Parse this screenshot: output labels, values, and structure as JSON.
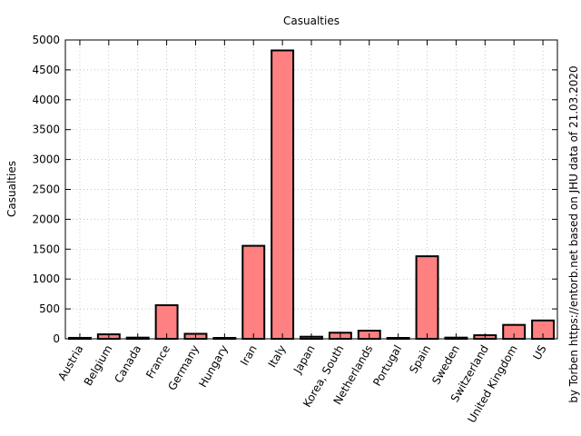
{
  "chart_data": {
    "type": "bar",
    "title": "Casualties",
    "ylabel": "Casualties",
    "xlabel": "",
    "ylim": [
      0,
      5000
    ],
    "yticks": [
      0,
      500,
      1000,
      1500,
      2000,
      2500,
      3000,
      3500,
      4000,
      4500,
      5000
    ],
    "grid": true,
    "bar_color": "#ff8080",
    "categories": [
      "Austria",
      "Belgium",
      "Canada",
      "France",
      "Germany",
      "Hungary",
      "Iran",
      "Italy",
      "Japan",
      "Korea, South",
      "Netherlands",
      "Portugal",
      "Spain",
      "Sweden",
      "Switzerland",
      "United Kingdom",
      "US"
    ],
    "values": [
      16,
      75,
      20,
      562,
      84,
      6,
      1556,
      4825,
      35,
      102,
      136,
      12,
      1381,
      20,
      60,
      233,
      307
    ],
    "side_note": "by Torben https://entorb.net based on JHU data of 21.03.2020"
  }
}
